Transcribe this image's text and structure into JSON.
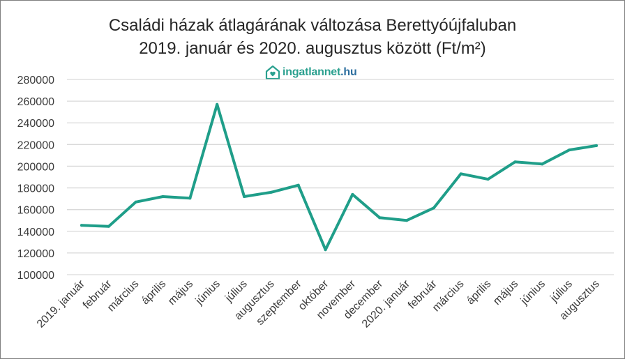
{
  "chart_data": {
    "type": "line",
    "title": "Családi házak átlagárának változása Berettyóújfaluban",
    "subtitle": "2019. január és 2020. augusztus között (Ft/m²)",
    "categories": [
      "2019. január",
      "február",
      "március",
      "április",
      "május",
      "június",
      "július",
      "augusztus",
      "szeptember",
      "október",
      "november",
      "december",
      "2020. január",
      "február",
      "március",
      "április",
      "május",
      "június",
      "július",
      "augusztus"
    ],
    "series": [
      {
        "name": "",
        "color": "#1f9e89",
        "values": [
          145500,
          144500,
          167000,
          172000,
          170500,
          257000,
          172000,
          176000,
          182500,
          123000,
          174000,
          152500,
          150000,
          161500,
          193000,
          188000,
          204000,
          202000,
          215000,
          219000
        ]
      }
    ],
    "yticks": [
      100000,
      120000,
      140000,
      160000,
      180000,
      200000,
      220000,
      240000,
      260000,
      280000
    ],
    "ylim": [
      100000,
      280000
    ],
    "grid": true,
    "legend": "none",
    "xlabel": "",
    "ylabel": ""
  },
  "brand": {
    "name": "ingatlannet",
    "tld": ".hu",
    "icon": "house-heart-icon",
    "color": "#2aa08f",
    "tld_color": "#2d6f9f"
  }
}
